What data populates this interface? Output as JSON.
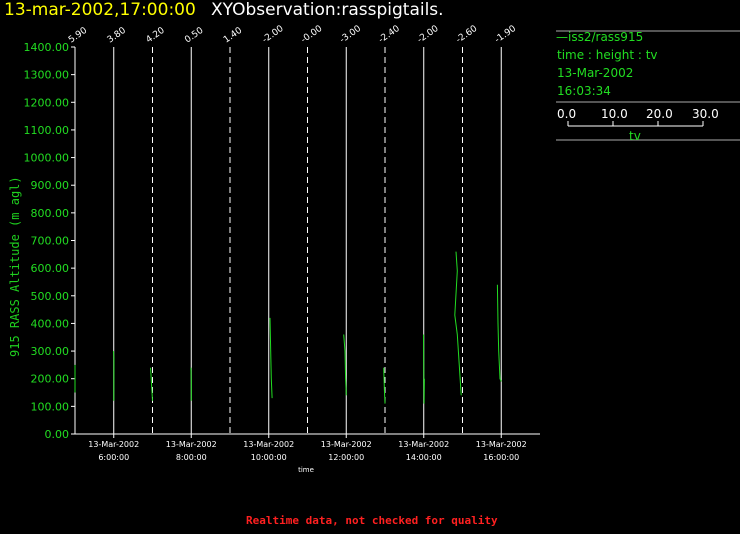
{
  "header": {
    "time": "13-mar-2002,17:00:00",
    "name": "XYObservation:rasspigtails."
  },
  "legend_panel": {
    "series": "iss2/rass915",
    "variables": "time : height : tv",
    "date": "13-Mar-2002",
    "time": "16:03:34",
    "scale_ticks": [
      "0.0",
      "10.0",
      "20.0",
      "30.0"
    ],
    "scale_label": "tv"
  },
  "footer": {
    "quality_note": "Realtime data, not checked for quality"
  },
  "colors": {
    "data": "#22dd22",
    "axis": "#ffffff",
    "title_time": "#ffff00",
    "warning": "#ff2020"
  },
  "chart_data": {
    "type": "line",
    "title": "XYObservation:rasspigtails.",
    "ylabel": "915 RASS Altitude (m agl)",
    "xlabel": "time",
    "ylim": [
      0,
      1400
    ],
    "y_ticks": [
      "0.00",
      "100.00",
      "200.00",
      "300.00",
      "400.00",
      "500.00",
      "600.00",
      "700.00",
      "800.00",
      "900.00",
      "1000.00",
      "1100.00",
      "1200.00",
      "1300.00",
      "1400.00"
    ],
    "x_ticks": [
      {
        "date": "13-Mar-2002",
        "time": "6:00:00"
      },
      {
        "date": "13-Mar-2002",
        "time": "8:00:00"
      },
      {
        "date": "13-Mar-2002",
        "time": "10:00:00"
      },
      {
        "date": "13-Mar-2002",
        "time": "12:00:00"
      },
      {
        "date": "13-Mar-2002",
        "time": "14:00:00"
      },
      {
        "date": "13-Mar-2002",
        "time": "16:00:00"
      }
    ],
    "xlim_hours": [
      5.0,
      17.0
    ],
    "profile_offset_scale_hours_per_unit": 0.0333,
    "profiles": [
      {
        "time": 5.0,
        "label": "5.90",
        "points": [
          [
            0.0,
            250
          ],
          [
            0.0,
            150
          ]
        ]
      },
      {
        "time": 6.0,
        "label": "3.80",
        "points": [
          [
            -0.2,
            300
          ],
          [
            0.2,
            270
          ],
          [
            0.1,
            200
          ],
          [
            0.0,
            120
          ]
        ]
      },
      {
        "time": 7.0,
        "label": "4.20",
        "points": [
          [
            -1.5,
            240
          ],
          [
            -1.0,
            200
          ],
          [
            0.0,
            120
          ]
        ]
      },
      {
        "time": 8.0,
        "label": "0.50",
        "points": [
          [
            -0.3,
            240
          ],
          [
            0.0,
            190
          ],
          [
            0.0,
            120
          ]
        ]
      },
      {
        "time": 9.0,
        "label": "1.40",
        "points": []
      },
      {
        "time": 10.0,
        "label": "-2.00",
        "points": [
          [
            1.0,
            420
          ],
          [
            1.5,
            300
          ],
          [
            2.0,
            200
          ],
          [
            2.6,
            130
          ]
        ]
      },
      {
        "time": 11.0,
        "label": "-0.00",
        "points": []
      },
      {
        "time": 12.0,
        "label": "-3.00",
        "points": [
          [
            -2.0,
            360
          ],
          [
            -1.0,
            300
          ],
          [
            -0.5,
            200
          ],
          [
            0.0,
            140
          ]
        ]
      },
      {
        "time": 13.0,
        "label": "-2.40",
        "points": [
          [
            -1.0,
            240
          ],
          [
            -0.5,
            160
          ],
          [
            0.0,
            110
          ]
        ]
      },
      {
        "time": 14.0,
        "label": "-2.00",
        "points": [
          [
            -0.2,
            360
          ],
          [
            0.0,
            240
          ],
          [
            0.3,
            110
          ],
          [
            0.5,
            200
          ]
        ]
      },
      {
        "time": 15.0,
        "label": "-2.60",
        "points": [
          [
            -5.0,
            660
          ],
          [
            -4.0,
            590
          ],
          [
            -6.0,
            430
          ],
          [
            -4.0,
            360
          ],
          [
            -1.0,
            140
          ]
        ]
      },
      {
        "time": 16.0,
        "label": "-1.90",
        "points": [
          [
            -3.0,
            540
          ],
          [
            -2.5,
            400
          ],
          [
            -2.0,
            300
          ],
          [
            -1.0,
            200
          ],
          [
            0.0,
            190
          ]
        ]
      }
    ]
  }
}
